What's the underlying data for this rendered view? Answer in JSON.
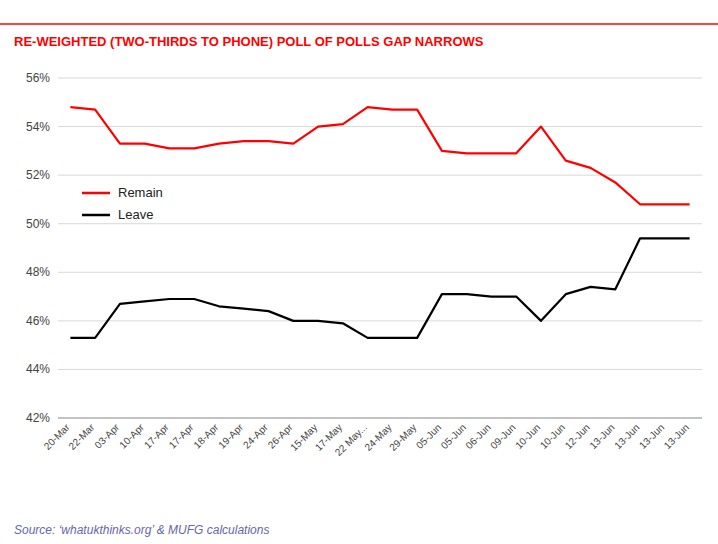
{
  "chart_data": {
    "type": "line",
    "title": "RE-WEIGHTED (TWO-THIRDS TO PHONE) POLL OF POLLS GAP NARROWS",
    "annotations": [
      "Source: ‘whatukthinks.org’ & MUFG calculations"
    ],
    "categories": [
      "20-Mar",
      "22-Mar",
      "03-Apr",
      "10-Apr",
      "17-Apr",
      "17-Apr",
      "18-Apr",
      "19-Apr",
      "24-Apr",
      "26-Apr",
      "15-May",
      "17-May",
      "22 May...",
      "24-May",
      "29-May",
      "05-Jun",
      "05-Jun",
      "06-Jun",
      "09-Jun",
      "10-Jun",
      "10-Jun",
      "12-Jun",
      "13-Jun",
      "13-Jun",
      "13-Jun",
      "13-Jun"
    ],
    "series": [
      {
        "name": "Remain",
        "color": "#ff0000",
        "values": [
          54.8,
          54.7,
          53.3,
          53.3,
          53.1,
          53.1,
          53.3,
          53.4,
          53.4,
          53.3,
          54.0,
          54.1,
          54.8,
          54.7,
          54.7,
          53.0,
          52.9,
          52.9,
          52.9,
          54.0,
          52.6,
          52.3,
          51.7,
          50.8,
          50.8,
          50.8
        ]
      },
      {
        "name": "Leave",
        "color": "#000000",
        "values": [
          45.3,
          45.3,
          46.7,
          46.8,
          46.9,
          46.9,
          46.6,
          46.5,
          46.4,
          46.0,
          46.0,
          45.9,
          45.3,
          45.3,
          45.3,
          47.1,
          47.1,
          47.0,
          47.0,
          46.0,
          47.1,
          47.4,
          47.3,
          49.4,
          49.4,
          49.4
        ]
      }
    ],
    "ylim": [
      42,
      56
    ],
    "yticks": [
      {
        "value": 42,
        "label": "42%"
      },
      {
        "value": 44,
        "label": "44%"
      },
      {
        "value": 46,
        "label": "46%"
      },
      {
        "value": 48,
        "label": "48%"
      },
      {
        "value": 50,
        "label": "50%"
      },
      {
        "value": 52,
        "label": "52%"
      },
      {
        "value": 54,
        "label": "54%"
      },
      {
        "value": 56,
        "label": "56%"
      }
    ],
    "grid": true,
    "legend": "upper left"
  }
}
